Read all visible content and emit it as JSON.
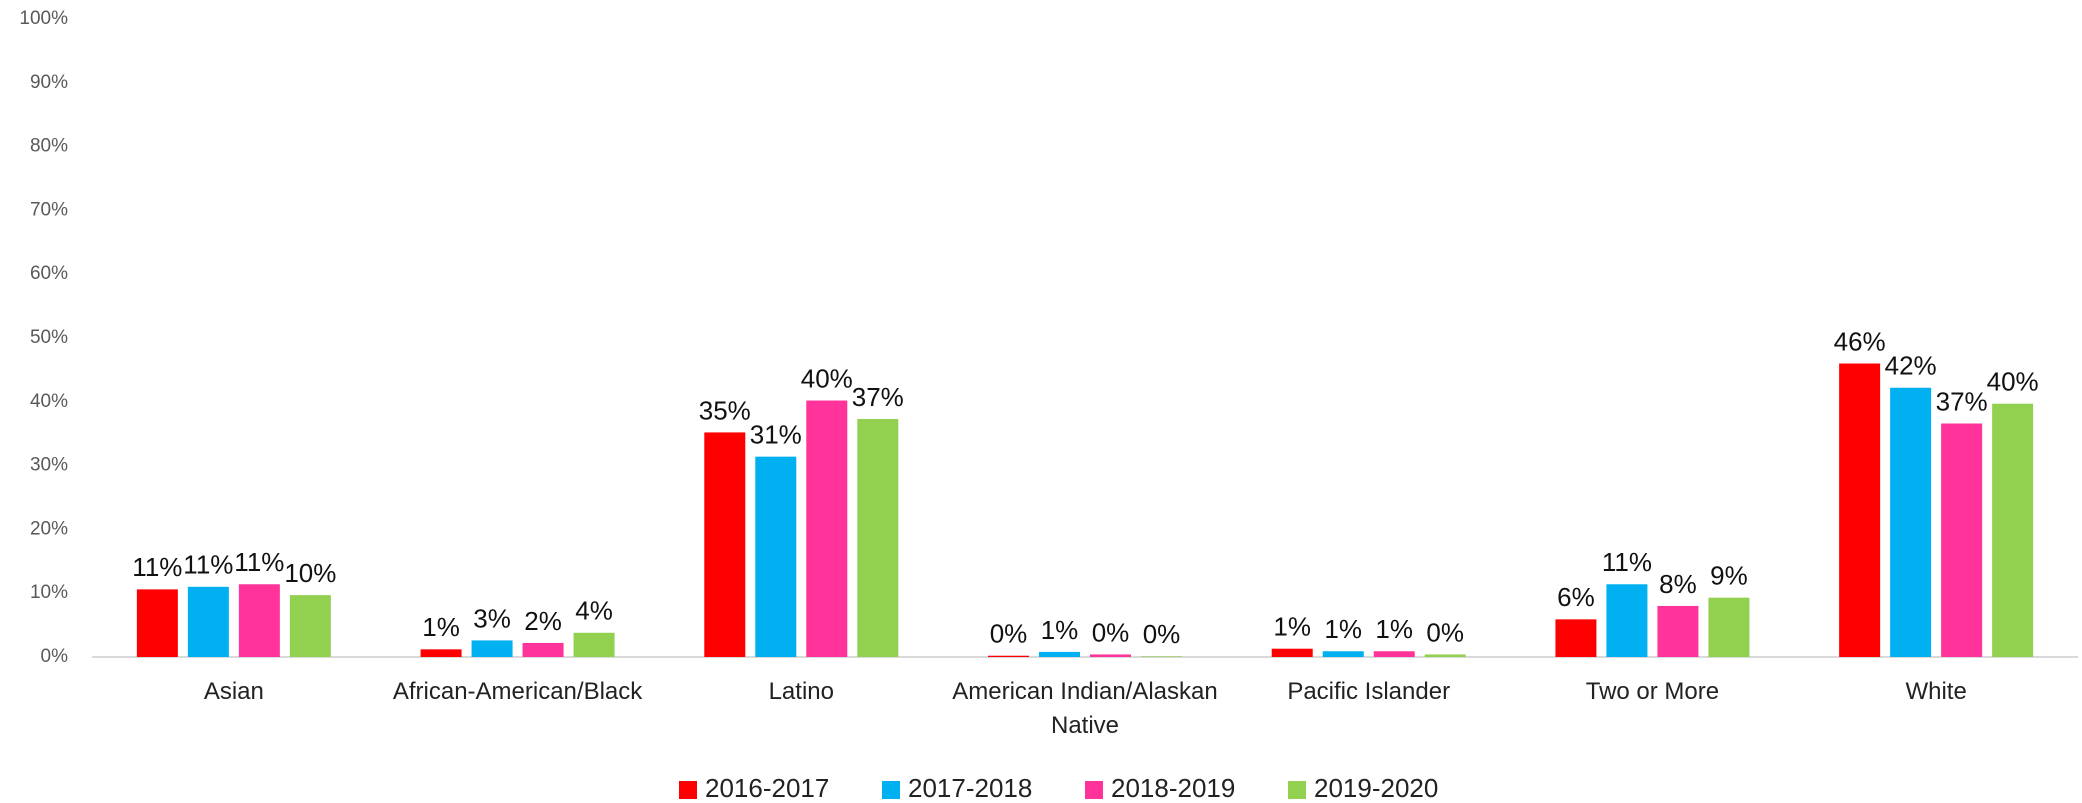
{
  "chart_data": {
    "type": "bar",
    "categories": [
      "Asian",
      "African-American/Black",
      "Latino",
      "American Indian/Alaskan Native",
      "Pacific Islander",
      "Two or More",
      "White"
    ],
    "series": [
      {
        "name": "2016-2017",
        "color": "#ff0000",
        "values": [
          10.6,
          1.2,
          35.2,
          0.2,
          1.3,
          5.9,
          46.0
        ],
        "value_labels": [
          "11%",
          "1%",
          "35%",
          "0%",
          "1%",
          "6%",
          "46%"
        ]
      },
      {
        "name": "2017-2018",
        "color": "#00b0f0",
        "values": [
          11.0,
          2.6,
          31.4,
          0.8,
          0.9,
          11.4,
          42.2
        ],
        "value_labels": [
          "11%",
          "3%",
          "31%",
          "1%",
          "1%",
          "11%",
          "42%"
        ]
      },
      {
        "name": "2018-2019",
        "color": "#ff3399",
        "values": [
          11.4,
          2.2,
          40.2,
          0.4,
          0.9,
          8.0,
          36.6
        ],
        "value_labels": [
          "11%",
          "2%",
          "40%",
          "0%",
          "1%",
          "8%",
          "37%"
        ]
      },
      {
        "name": "2019-2020",
        "color": "#92d050",
        "values": [
          9.7,
          3.8,
          37.3,
          0.1,
          0.4,
          9.3,
          39.7
        ],
        "value_labels": [
          "10%",
          "4%",
          "37%",
          "0%",
          "0%",
          "9%",
          "40%"
        ]
      }
    ],
    "ylim": [
      0,
      100
    ],
    "yticks": [
      {
        "value": 0,
        "label": "0%"
      },
      {
        "value": 10,
        "label": "10%"
      },
      {
        "value": 20,
        "label": "20%"
      },
      {
        "value": 30,
        "label": "30%"
      },
      {
        "value": 40,
        "label": "40%"
      },
      {
        "value": 50,
        "label": "50%"
      },
      {
        "value": 60,
        "label": "60%"
      },
      {
        "value": 70,
        "label": "70%"
      },
      {
        "value": 80,
        "label": "80%"
      },
      {
        "value": 90,
        "label": "90%"
      },
      {
        "value": 100,
        "label": "100%"
      }
    ],
    "grid": false,
    "legend": "bottom"
  }
}
